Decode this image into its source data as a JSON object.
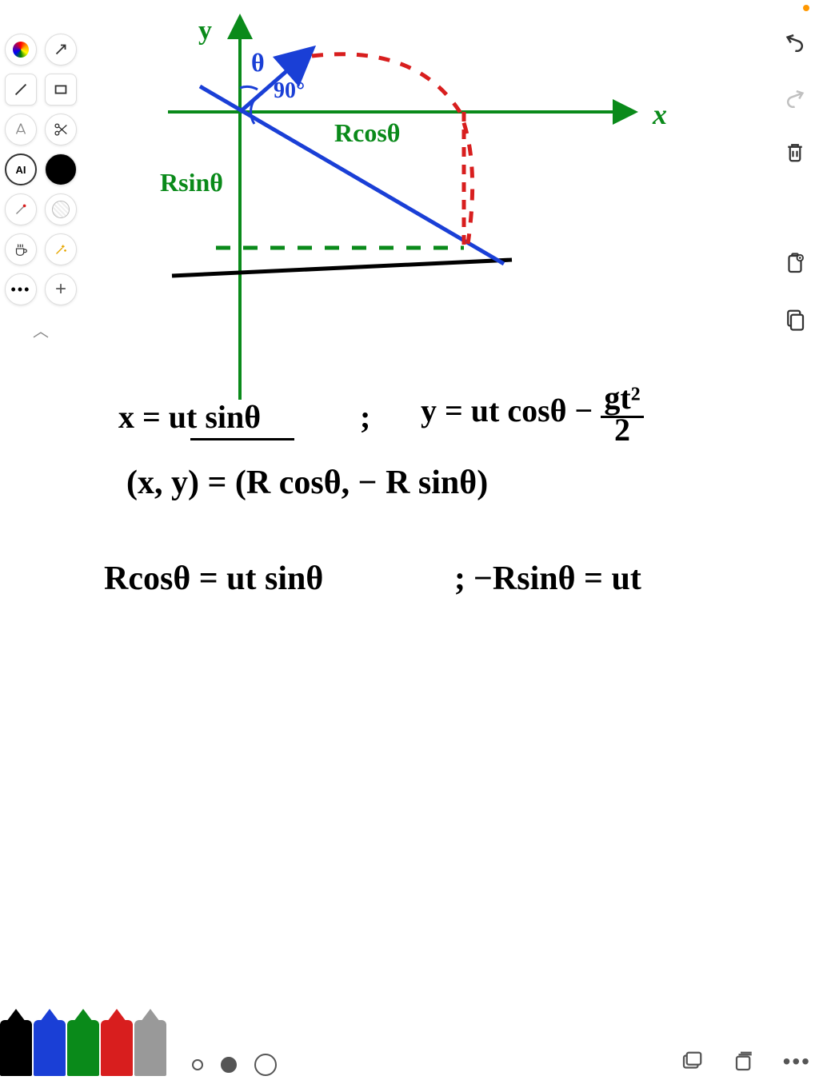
{
  "colors": {
    "black": "#000000",
    "blue": "#1a3fd6",
    "green": "#0a8a1a",
    "red": "#d81e1e",
    "gray": "#999999",
    "orange": "#ff9800"
  },
  "diagram": {
    "axes": {
      "x_label": "x",
      "y_label": "y",
      "color": "#0a8a1a",
      "stroke_width": 3
    },
    "angle_labels": {
      "theta": "θ",
      "ninety": "90°",
      "color": "#1a3fd6"
    },
    "labels": {
      "Rcos": "Rcosθ",
      "Rsin": "Rsinθ",
      "color": "#0a8a1a",
      "fontsize": 30
    },
    "trajectory": {
      "color": "#d81e1e",
      "dash": "12 10",
      "stroke_width": 4
    },
    "hypotenuse": {
      "color": "#1a3fd6",
      "stroke_width": 4
    },
    "ground": {
      "color": "#000000",
      "stroke_width": 4
    }
  },
  "equations": {
    "line1_left": "x = ut sinθ",
    "line1_sep": ";",
    "line1_right": "y = ut cosθ − gt²/2",
    "line2": "(x, y) = (R cosθ, − R sinθ)",
    "line3_left": "Rcosθ = ut sinθ",
    "line3_sep": ";",
    "line3_right": "−Rsinθ = ut",
    "fontsize": 36,
    "color": "#000000"
  },
  "left_tools": [
    {
      "name": "color-picker-icon",
      "symbol": "flower"
    },
    {
      "name": "arrow-tool-icon",
      "symbol": "arrow"
    },
    {
      "name": "line-tool-icon",
      "symbol": "line"
    },
    {
      "name": "rect-tool-icon",
      "symbol": "rect"
    },
    {
      "name": "transform-tool-icon",
      "symbol": "compass"
    },
    {
      "name": "scissors-icon",
      "symbol": "scissors"
    },
    {
      "name": "ai-tool-icon",
      "symbol": "AI"
    },
    {
      "name": "fill-tool-icon",
      "symbol": "filled-circle"
    },
    {
      "name": "brush-tool-icon",
      "symbol": "slash-dot"
    },
    {
      "name": "pattern-tool-icon",
      "symbol": "pattern-circle"
    },
    {
      "name": "coffee-icon",
      "symbol": "coffee"
    },
    {
      "name": "magic-tool-icon",
      "symbol": "sparkle"
    },
    {
      "name": "more-tools-icon",
      "symbol": "dots"
    },
    {
      "name": "add-tool-icon",
      "symbol": "plus"
    }
  ],
  "right_tools": [
    {
      "name": "undo-button",
      "symbol": "undo",
      "disabled": false
    },
    {
      "name": "redo-button",
      "symbol": "redo",
      "disabled": true
    },
    {
      "name": "delete-button",
      "symbol": "trash",
      "disabled": false
    },
    {
      "name": "copy-button",
      "symbol": "clipboard",
      "disabled": false
    },
    {
      "name": "paste-button",
      "symbol": "clipboard-stack",
      "disabled": false
    }
  ],
  "bottom": {
    "pens": [
      {
        "name": "pen-black",
        "color": "#000000"
      },
      {
        "name": "pen-blue",
        "color": "#1a3fd6"
      },
      {
        "name": "pen-green",
        "color": "#0a8a1a"
      },
      {
        "name": "pen-red",
        "color": "#d81e1e"
      },
      {
        "name": "pen-gray",
        "color": "#999999"
      }
    ],
    "sizes": [
      {
        "name": "size-small",
        "diameter": 14,
        "active": false
      },
      {
        "name": "size-medium",
        "diameter": 20,
        "active": true
      },
      {
        "name": "size-large",
        "diameter": 28,
        "active": false
      }
    ],
    "right_icons": [
      {
        "name": "layers-icon",
        "symbol": "layers"
      },
      {
        "name": "pages-icon",
        "symbol": "pages"
      },
      {
        "name": "more-menu-icon",
        "symbol": "dots"
      }
    ]
  }
}
